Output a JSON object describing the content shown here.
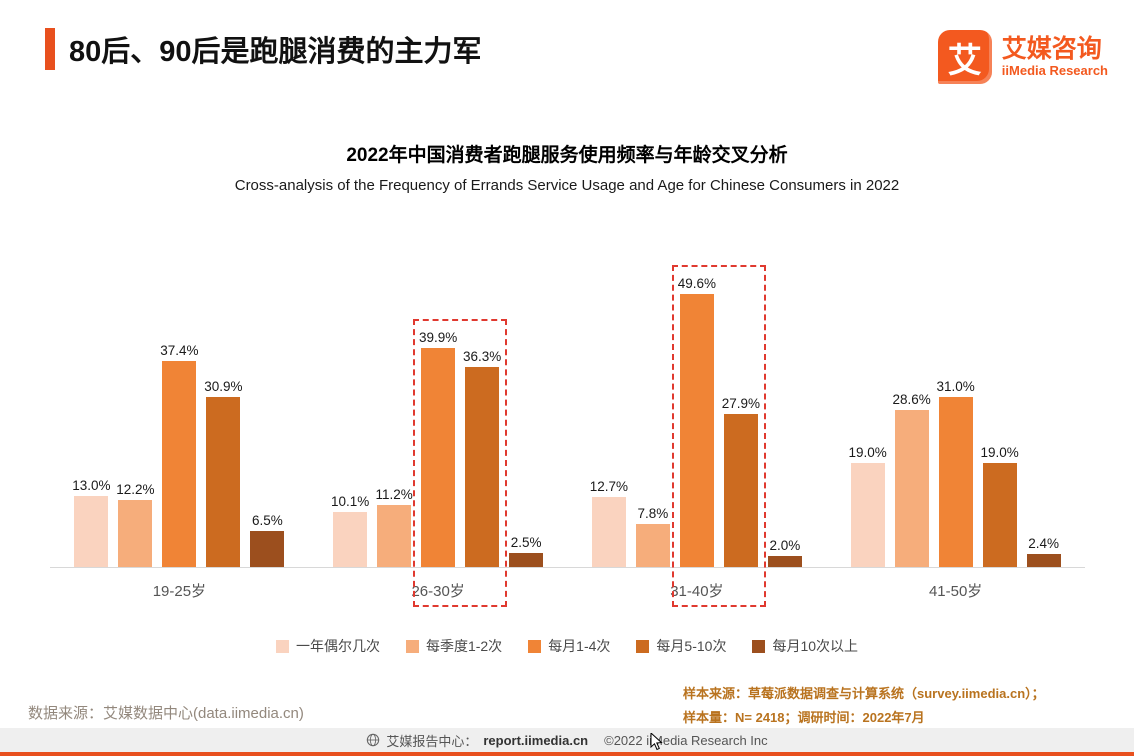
{
  "header": {
    "title": "80后、90后是跑腿消费的主力军",
    "logo": {
      "glyph": "艾",
      "brand_cn": "艾媒咨询",
      "brand_en": "iiMedia Research"
    }
  },
  "chart_data": {
    "type": "bar",
    "title": "2022年中国消费者跑腿服务使用频率与年龄交叉分析",
    "subtitle": "Cross-analysis of the Frequency of Errands Service Usage and Age for Chinese Consumers in 2022",
    "categories": [
      "19-25岁",
      "26-30岁",
      "31-40岁",
      "41-50岁"
    ],
    "series": [
      {
        "name": "一年偶尔几次",
        "color": "#FAD3BF",
        "values": [
          13.0,
          10.1,
          12.7,
          19.0
        ]
      },
      {
        "name": "每季度1-2次",
        "color": "#F6AD7B",
        "values": [
          12.2,
          11.2,
          7.8,
          28.6
        ]
      },
      {
        "name": "每月1-4次",
        "color": "#F08436",
        "values": [
          37.4,
          39.9,
          49.6,
          31.0
        ]
      },
      {
        "name": "每月5-10次",
        "color": "#CC6B20",
        "values": [
          30.9,
          36.3,
          27.9,
          19.0
        ]
      },
      {
        "name": "每月10次以上",
        "color": "#9C4F1E",
        "values": [
          6.5,
          2.5,
          2.0,
          2.4
        ]
      }
    ],
    "value_suffix": "%",
    "ylim": [
      0,
      55
    ],
    "grid": false,
    "legend_position": "bottom",
    "highlighted_categories": [
      "26-30岁",
      "31-40岁"
    ],
    "highlight_series_indices": [
      2,
      3
    ]
  },
  "footnotes": {
    "source_left": "数据来源：艾媒数据中心(data.iimedia.cn)",
    "sample_line1": "样本来源：草莓派数据调查与计算系统（survey.iimedia.cn）；",
    "sample_line2": "样本量：N= 2418；调研时间：2022年7月"
  },
  "footer": {
    "prefix": "艾媒报告中心：",
    "link": "report.iimedia.cn",
    "copyright": "©2022  iiMedia Research Inc"
  },
  "colors": {
    "accent": "#E8501E",
    "highlight_box": "#E0392F",
    "axis": "#D8D8D8"
  }
}
